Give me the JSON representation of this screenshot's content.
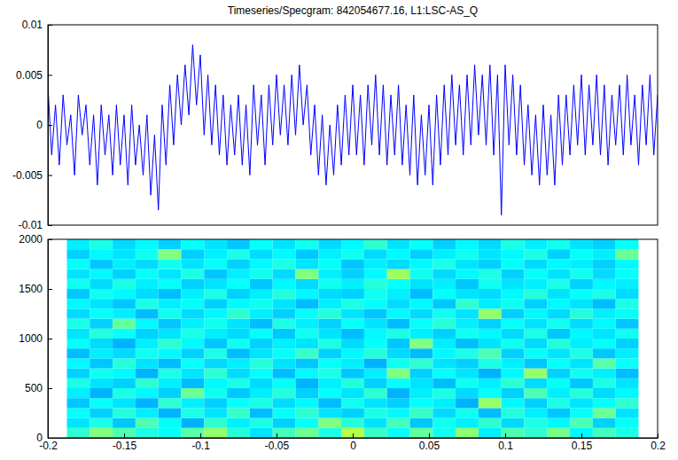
{
  "chart_data": [
    {
      "type": "line",
      "title": "Timeseries/Specgram: 842054677.16, L1:LSC-AS_Q",
      "color": "#0000ff",
      "tick_labels": "y",
      "xlim": [
        -0.2,
        0.2
      ],
      "ylim": [
        -0.01,
        0.01
      ],
      "yticks": [
        -0.01,
        -0.005,
        0,
        0.005,
        0.01
      ],
      "x": [
        -0.2,
        -0.1975,
        -0.195,
        -0.1925,
        -0.19,
        -0.1875,
        -0.185,
        -0.1825,
        -0.18,
        -0.1775,
        -0.175,
        -0.1725,
        -0.17,
        -0.1675,
        -0.165,
        -0.1625,
        -0.16,
        -0.1575,
        -0.155,
        -0.1525,
        -0.15,
        -0.1475,
        -0.145,
        -0.1425,
        -0.14,
        -0.1375,
        -0.135,
        -0.1325,
        -0.13,
        -0.1275,
        -0.125,
        -0.1225,
        -0.12,
        -0.1175,
        -0.115,
        -0.1125,
        -0.11,
        -0.1075,
        -0.105,
        -0.1025,
        -0.1,
        -0.0975,
        -0.095,
        -0.0925,
        -0.09,
        -0.0875,
        -0.085,
        -0.0825,
        -0.08,
        -0.0775,
        -0.075,
        -0.0725,
        -0.07,
        -0.0675,
        -0.065,
        -0.0625,
        -0.06,
        -0.0575,
        -0.055,
        -0.0525,
        -0.05,
        -0.0475,
        -0.045,
        -0.0425,
        -0.04,
        -0.0375,
        -0.035,
        -0.0325,
        -0.03,
        -0.0275,
        -0.025,
        -0.0225,
        -0.02,
        -0.0175,
        -0.015,
        -0.0125,
        -0.01,
        -0.0075,
        -0.005,
        -0.0025,
        0,
        0.0025,
        0.005,
        0.0075,
        0.01,
        0.0125,
        0.015,
        0.0175,
        0.02,
        0.0225,
        0.025,
        0.0275,
        0.03,
        0.0325,
        0.035,
        0.0375,
        0.04,
        0.0425,
        0.045,
        0.0475,
        0.05,
        0.0525,
        0.055,
        0.0575,
        0.06,
        0.0625,
        0.065,
        0.0675,
        0.07,
        0.0725,
        0.075,
        0.0775,
        0.08,
        0.0825,
        0.085,
        0.0875,
        0.09,
        0.0925,
        0.095,
        0.0975,
        0.1,
        0.1025,
        0.105,
        0.1075,
        0.11,
        0.1125,
        0.115,
        0.1175,
        0.12,
        0.1225,
        0.125,
        0.1275,
        0.13,
        0.1325,
        0.135,
        0.1375,
        0.14,
        0.1425,
        0.145,
        0.1475,
        0.15,
        0.1525,
        0.155,
        0.1575,
        0.16,
        0.1625,
        0.165,
        0.1675,
        0.17,
        0.1725,
        0.175,
        0.1775,
        0.18,
        0.1825,
        0.185,
        0.1875,
        0.19,
        0.1925,
        0.195,
        0.1975,
        0.2
      ],
      "values": [
        0.004,
        -0.003,
        0.002,
        -0.004,
        0.003,
        -0.002,
        0.001,
        -0.005,
        0.003,
        -0.001,
        0.002,
        -0.004,
        0.001,
        -0.006,
        0.002,
        -0.003,
        0.001,
        -0.005,
        0.002,
        -0.004,
        0.001,
        -0.006,
        0.002,
        -0.004,
        0,
        -0.005,
        0.001,
        -0.007,
        -0.001,
        -0.0085,
        0.002,
        -0.004,
        0.004,
        -0.002,
        0.005,
        0,
        0.006,
        0.001,
        0.008,
        0.002,
        0.007,
        -0.001,
        0.005,
        -0.002,
        0.004,
        -0.003,
        0.003,
        -0.004,
        0.002,
        -0.003,
        0.003,
        -0.004,
        0.002,
        -0.005,
        0.004,
        -0.002,
        0.003,
        -0.004,
        0.004,
        -0.002,
        0.005,
        -0.001,
        0.004,
        -0.002,
        0.005,
        -0.001,
        0.006,
        0,
        0.004,
        -0.003,
        0.002,
        -0.005,
        0.001,
        -0.006,
        0,
        -0.005,
        0.002,
        -0.004,
        0.003,
        -0.003,
        0.004,
        -0.003,
        0.003,
        -0.004,
        0.004,
        -0.002,
        0.005,
        -0.003,
        0.004,
        -0.004,
        0.003,
        -0.003,
        0.004,
        -0.004,
        0.002,
        -0.005,
        0.003,
        -0.006,
        0.001,
        -0.005,
        0.002,
        -0.006,
        0.003,
        -0.004,
        0.004,
        -0.003,
        0.005,
        -0.002,
        0.004,
        -0.003,
        0.005,
        -0.002,
        0.006,
        -0.001,
        0.005,
        -0.002,
        0.006,
        -0.003,
        0.005,
        -0.009,
        0.006,
        -0.002,
        0.005,
        -0.003,
        0.004,
        -0.004,
        0.002,
        -0.005,
        0.001,
        -0.006,
        0.002,
        -0.005,
        0.001,
        -0.006,
        0.003,
        -0.004,
        0.003,
        -0.003,
        0.004,
        -0.002,
        0.005,
        -0.003,
        0.004,
        -0.002,
        0.005,
        -0.003,
        0.004,
        -0.004,
        0.003,
        -0.002,
        0.004,
        -0.003,
        0.005,
        -0.002,
        0.003,
        -0.004,
        0.004,
        -0.002,
        0.005,
        -0.003,
        0.003
      ]
    },
    {
      "type": "heatmap",
      "xlim": [
        -0.2,
        0.2
      ],
      "ylim": [
        0,
        2000
      ],
      "xticks": [
        -0.2,
        -0.15,
        -0.1,
        -0.05,
        0,
        0.05,
        0.1,
        0.15,
        0.2
      ],
      "yticks": [
        0,
        500,
        1000,
        1500,
        2000
      ],
      "zlim": [
        0,
        1
      ],
      "x": [
        -0.1875,
        -0.1725,
        -0.1575,
        -0.1425,
        -0.1275,
        -0.1125,
        -0.0975,
        -0.0825,
        -0.0675,
        -0.0525,
        -0.0375,
        -0.0225,
        -0.0075,
        0.0075,
        0.0225,
        0.0375,
        0.0525,
        0.0675,
        0.0825,
        0.0975,
        0.1125,
        0.1275,
        0.1425,
        0.1575,
        0.1725,
        0.1875
      ],
      "y": [
        0,
        100,
        200,
        300,
        400,
        500,
        600,
        700,
        800,
        900,
        1000,
        1100,
        1200,
        1300,
        1400,
        1500,
        1600,
        1700,
        1800,
        1900,
        2000
      ],
      "cells": [
        [
          0.42,
          0.5,
          0.45,
          0.4,
          0.38,
          0.46,
          0.52,
          0.41,
          0.35,
          0.44,
          0.48,
          0.4,
          0.55,
          0.43,
          0.38,
          0.47,
          0.39,
          0.51,
          0.36,
          0.45,
          0.42,
          0.49,
          0.37,
          0.44,
          0.4
        ],
        [
          0.35,
          0.4,
          0.32,
          0.45,
          0.38,
          0.3,
          0.42,
          0.36,
          0.4,
          0.33,
          0.38,
          0.5,
          0.41,
          0.35,
          0.44,
          0.32,
          0.39,
          0.36,
          0.42,
          0.34,
          0.4,
          0.37,
          0.45,
          0.33,
          0.38
        ],
        [
          0.38,
          0.33,
          0.41,
          0.36,
          0.3,
          0.4,
          0.35,
          0.43,
          0.31,
          0.38,
          0.42,
          0.35,
          0.33,
          0.4,
          0.37,
          0.43,
          0.34,
          0.39,
          0.31,
          0.41,
          0.36,
          0.32,
          0.38,
          0.48,
          0.35
        ],
        [
          0.32,
          0.38,
          0.35,
          0.3,
          0.42,
          0.36,
          0.33,
          0.38,
          0.4,
          0.34,
          0.37,
          0.31,
          0.39,
          0.35,
          0.33,
          0.38,
          0.36,
          0.3,
          0.52,
          0.37,
          0.33,
          0.4,
          0.35,
          0.38,
          0.42
        ],
        [
          0.36,
          0.3,
          0.4,
          0.37,
          0.33,
          0.48,
          0.39,
          0.32,
          0.36,
          0.41,
          0.33,
          0.38,
          0.35,
          0.42,
          0.3,
          0.36,
          0.4,
          0.34,
          0.38,
          0.33,
          0.45,
          0.36,
          0.41,
          0.34,
          0.37
        ],
        [
          0.4,
          0.35,
          0.33,
          0.42,
          0.36,
          0.31,
          0.37,
          0.4,
          0.34,
          0.38,
          0.3,
          0.36,
          0.41,
          0.33,
          0.38,
          0.35,
          0.31,
          0.39,
          0.36,
          0.42,
          0.34,
          0.38,
          0.32,
          0.4,
          0.35
        ],
        [
          0.33,
          0.39,
          0.37,
          0.3,
          0.4,
          0.35,
          0.42,
          0.34,
          0.38,
          0.31,
          0.37,
          0.4,
          0.32,
          0.36,
          0.5,
          0.33,
          0.38,
          0.35,
          0.3,
          0.37,
          0.52,
          0.33,
          0.39,
          0.36,
          0.31
        ],
        [
          0.37,
          0.32,
          0.41,
          0.35,
          0.31,
          0.38,
          0.34,
          0.36,
          0.41,
          0.35,
          0.32,
          0.38,
          0.36,
          0.3,
          0.39,
          0.42,
          0.35,
          0.33,
          0.4,
          0.36,
          0.32,
          0.38,
          0.35,
          0.46,
          0.38
        ],
        [
          0.31,
          0.36,
          0.34,
          0.39,
          0.37,
          0.33,
          0.4,
          0.31,
          0.35,
          0.38,
          0.43,
          0.33,
          0.37,
          0.41,
          0.34,
          0.31,
          0.37,
          0.4,
          0.45,
          0.33,
          0.38,
          0.35,
          0.4,
          0.32,
          0.36
        ],
        [
          0.38,
          0.34,
          0.3,
          0.36,
          0.42,
          0.37,
          0.32,
          0.39,
          0.33,
          0.36,
          0.35,
          0.4,
          0.34,
          0.38,
          0.32,
          0.5,
          0.36,
          0.31,
          0.35,
          0.39,
          0.34,
          0.41,
          0.36,
          0.38,
          0.33
        ],
        [
          0.35,
          0.41,
          0.38,
          0.33,
          0.35,
          0.4,
          0.36,
          0.34,
          0.38,
          0.32,
          0.39,
          0.35,
          0.31,
          0.37,
          0.4,
          0.36,
          0.33,
          0.39,
          0.37,
          0.34,
          0.4,
          0.32,
          0.37,
          0.35,
          0.39
        ],
        [
          0.4,
          0.33,
          0.47,
          0.37,
          0.32,
          0.36,
          0.39,
          0.35,
          0.31,
          0.4,
          0.36,
          0.33,
          0.38,
          0.35,
          0.31,
          0.38,
          0.41,
          0.36,
          0.33,
          0.38,
          0.35,
          0.39,
          0.34,
          0.37,
          0.32
        ],
        [
          0.34,
          0.38,
          0.36,
          0.31,
          0.39,
          0.34,
          0.37,
          0.42,
          0.36,
          0.33,
          0.38,
          0.41,
          0.35,
          0.32,
          0.37,
          0.34,
          0.39,
          0.35,
          0.52,
          0.33,
          0.37,
          0.34,
          0.41,
          0.36,
          0.38
        ],
        [
          0.37,
          0.35,
          0.32,
          0.4,
          0.36,
          0.38,
          0.33,
          0.37,
          0.39,
          0.35,
          0.31,
          0.36,
          0.4,
          0.38,
          0.34,
          0.37,
          0.32,
          0.42,
          0.36,
          0.39,
          0.33,
          0.37,
          0.35,
          0.31,
          0.4
        ],
        [
          0.32,
          0.39,
          0.37,
          0.34,
          0.31,
          0.36,
          0.4,
          0.33,
          0.36,
          0.41,
          0.37,
          0.34,
          0.33,
          0.39,
          0.36,
          0.31,
          0.38,
          0.35,
          0.34,
          0.37,
          0.41,
          0.35,
          0.38,
          0.4,
          0.34
        ],
        [
          0.39,
          0.34,
          0.4,
          0.36,
          0.38,
          0.33,
          0.35,
          0.38,
          0.32,
          0.37,
          0.34,
          0.39,
          0.36,
          0.41,
          0.38,
          0.35,
          0.36,
          0.32,
          0.39,
          0.35,
          0.36,
          0.4,
          0.33,
          0.37,
          0.36
        ],
        [
          0.35,
          0.37,
          0.33,
          0.38,
          0.35,
          0.4,
          0.32,
          0.36,
          0.39,
          0.34,
          0.5,
          0.36,
          0.33,
          0.37,
          0.53,
          0.39,
          0.34,
          0.37,
          0.4,
          0.33,
          0.38,
          0.35,
          0.39,
          0.34,
          0.38
        ],
        [
          0.38,
          0.32,
          0.36,
          0.34,
          0.39,
          0.35,
          0.38,
          0.33,
          0.37,
          0.4,
          0.35,
          0.38,
          0.32,
          0.36,
          0.34,
          0.37,
          0.4,
          0.35,
          0.33,
          0.38,
          0.34,
          0.37,
          0.36,
          0.33,
          0.37
        ],
        [
          0.33,
          0.37,
          0.35,
          0.39,
          0.5,
          0.33,
          0.36,
          0.4,
          0.34,
          0.37,
          0.32,
          0.36,
          0.39,
          0.34,
          0.37,
          0.33,
          0.36,
          0.39,
          0.35,
          0.37,
          0.4,
          0.33,
          0.38,
          0.36,
          0.48
        ],
        [
          0.36,
          0.4,
          0.34,
          0.37,
          0.33,
          0.38,
          0.35,
          0.32,
          0.38,
          0.35,
          0.39,
          0.34,
          0.37,
          0.42,
          0.35,
          0.38,
          0.33,
          0.37,
          0.34,
          0.4,
          0.36,
          0.39,
          0.35,
          0.33,
          0.38
        ]
      ]
    }
  ]
}
